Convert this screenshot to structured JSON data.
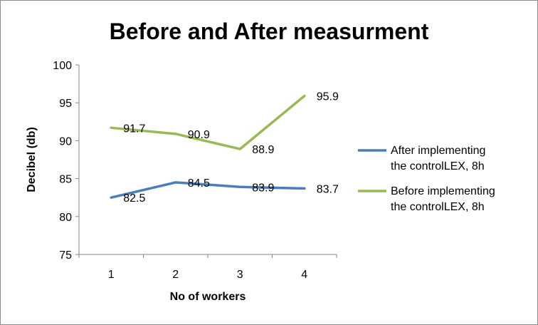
{
  "chart_data": {
    "type": "line",
    "title": "Before and After measurment",
    "xlabel": "No of workers",
    "ylabel": "Decibel (db)",
    "categories": [
      "1",
      "2",
      "3",
      "4"
    ],
    "ylim": [
      75,
      100
    ],
    "yticks": [
      75,
      80,
      85,
      90,
      95,
      100
    ],
    "grid": false,
    "legend_position": "right",
    "series": [
      {
        "name_lines": [
          "After implementing",
          "the controlLEX, 8h"
        ],
        "name": "After implementing the controlLEX, 8h",
        "color": "#4a7ebb",
        "values": [
          82.5,
          84.5,
          83.9,
          83.7
        ],
        "labels": [
          "82.5",
          "84.5",
          "83.9",
          "83.7"
        ]
      },
      {
        "name_lines": [
          "Before implementing",
          "the controlLEX, 8h"
        ],
        "name": "Before implementing the controlLEX, 8h",
        "color": "#98b954",
        "values": [
          91.7,
          90.9,
          88.9,
          95.9
        ],
        "labels": [
          "91.7",
          "90.9",
          "88.9",
          "95.9"
        ]
      }
    ]
  }
}
